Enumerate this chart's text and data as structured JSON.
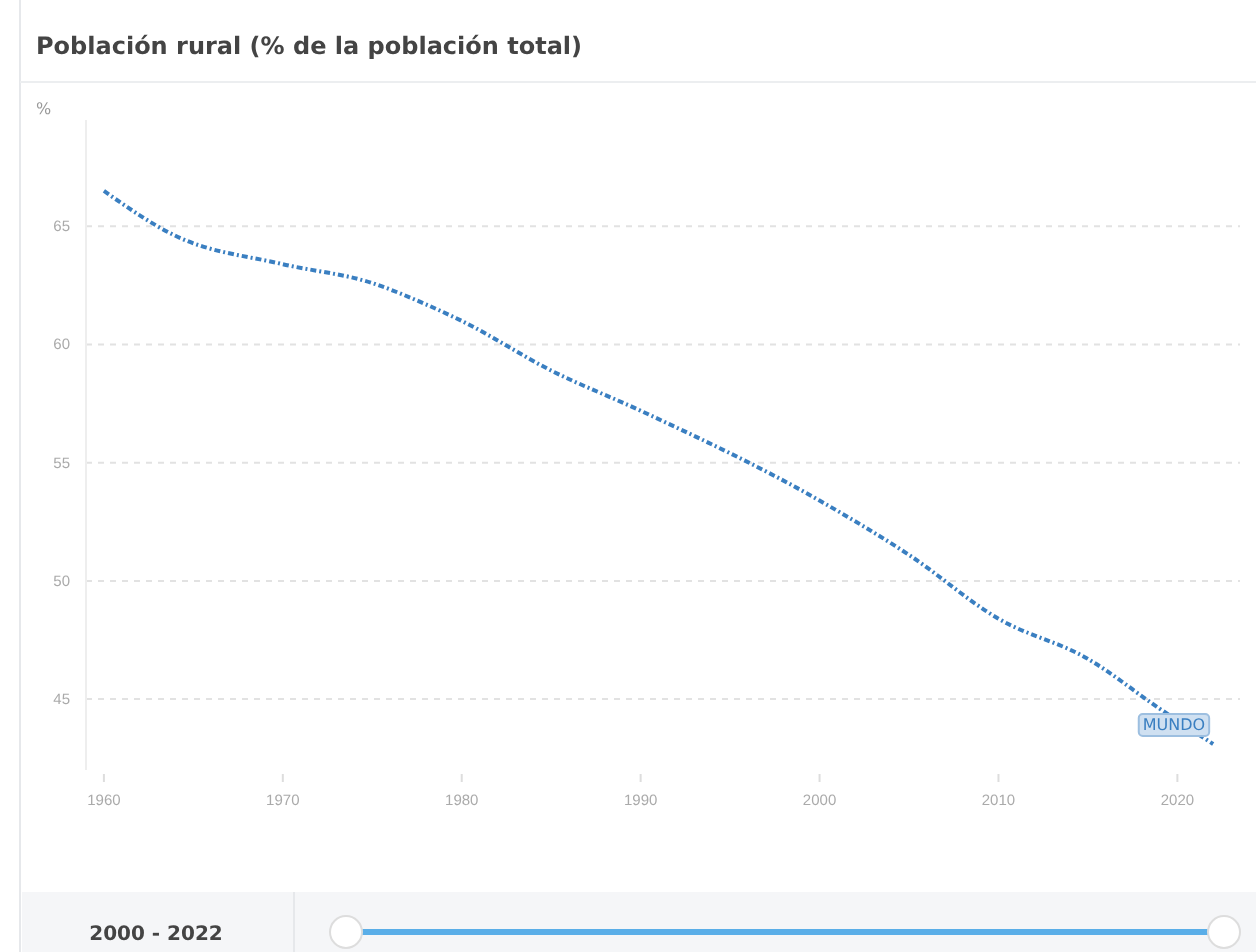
{
  "chart_data": {
    "type": "line",
    "title": "Población rural (% de la población total)",
    "ylabel": "%",
    "x": [
      1960,
      1964,
      1970,
      1975,
      1978,
      1980,
      1985,
      1990,
      2000,
      2005,
      2010,
      2015,
      2019,
      2022
    ],
    "series": [
      {
        "name": "MUNDO",
        "color": "#3a7fc1",
        "values": [
          66.5,
          64.6,
          63.4,
          62.6,
          61.7,
          61.0,
          58.9,
          57.2,
          53.4,
          51.1,
          48.4,
          46.7,
          44.6,
          43.1
        ]
      }
    ],
    "xlim": [
      1959,
      2023.5
    ],
    "xticks": [
      1960,
      1970,
      1980,
      1990,
      2000,
      2010,
      2020
    ],
    "ylim": [
      42,
      69.5
    ],
    "yticks": [
      45,
      50,
      55,
      60,
      65
    ],
    "grid": "y",
    "line_style": "dashed",
    "marker": "none",
    "annotations": [
      "2000 - 2022"
    ]
  }
}
